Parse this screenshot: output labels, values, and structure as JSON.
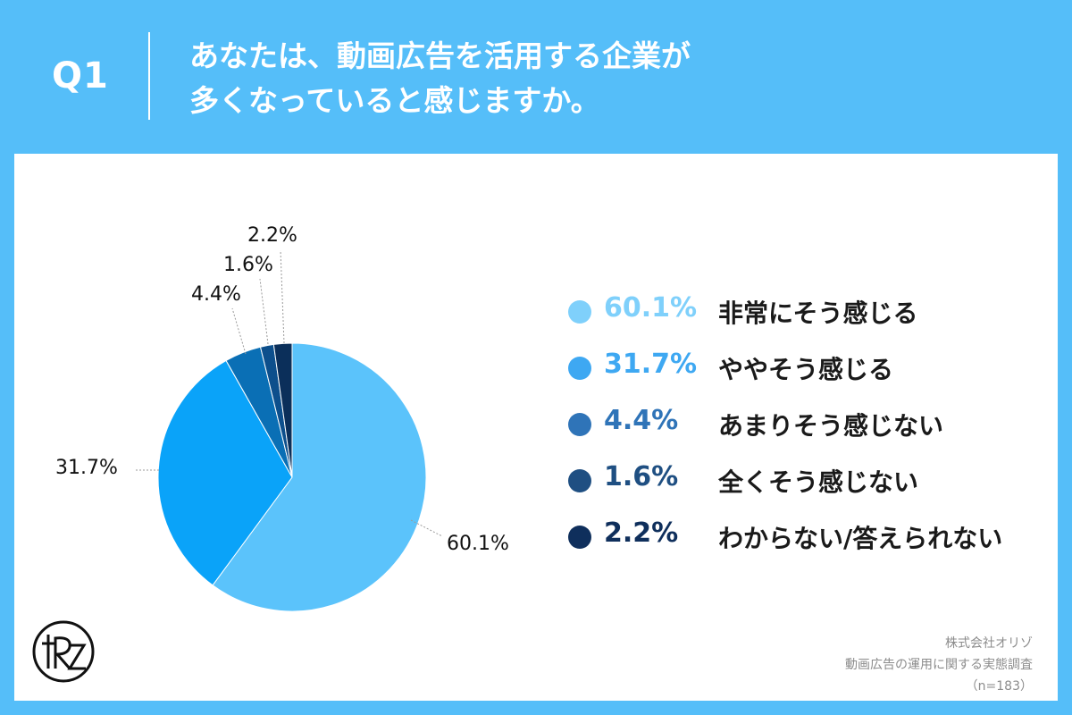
{
  "header": {
    "qnum": "Q1",
    "question_line1": "あなたは、動画広告を活用する企業が",
    "question_line2": "多くなっていると感じますか。"
  },
  "chart_data": {
    "type": "pie",
    "slices": [
      {
        "label": "非常にそう感じる",
        "value": 60.1,
        "value_label": "60.1%",
        "color": "#5bc3fb",
        "legend_color": "#7fd0fb"
      },
      {
        "label": "ややそう感じる",
        "value": 31.7,
        "value_label": "31.7%",
        "color": "#0aa3f9",
        "legend_color": "#3ea8f2"
      },
      {
        "label": "あまりそう感じない",
        "value": 4.4,
        "value_label": "4.4%",
        "color": "#0a6fb5",
        "legend_color": "#2f74b8"
      },
      {
        "label": "全くそう感じない",
        "value": 1.6,
        "value_label": "1.6%",
        "color": "#0d4f8c",
        "legend_color": "#1f4f82"
      },
      {
        "label": "わからない/答えられない",
        "value": 2.2,
        "value_label": "2.2%",
        "color": "#0b2f5a",
        "legend_color": "#0f2f5c"
      }
    ],
    "start_angle_deg": 0,
    "direction": "clockwise",
    "legend_placement": "right"
  },
  "logo": {
    "text": "tRZ"
  },
  "source": {
    "line1": "株式会社オリゾ",
    "line2": "動画広告の運用に関する実態調査",
    "line3": "（n=183）"
  }
}
